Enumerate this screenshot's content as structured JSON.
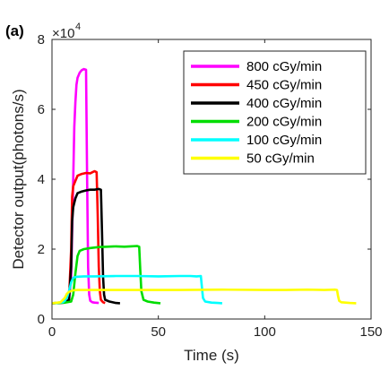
{
  "chart_data": {
    "type": "line",
    "panel_label": "(a)",
    "title": "",
    "xlabel": "Time (s)",
    "ylabel": "Detector output(photons/s)",
    "xlim": [
      0,
      150
    ],
    "ylim": [
      0,
      80000
    ],
    "x_ticks": [
      0,
      50,
      100,
      150
    ],
    "y_ticks": [
      0,
      20000,
      40000,
      60000,
      80000
    ],
    "x_tick_labels": [
      "0",
      "50",
      "100",
      "150"
    ],
    "y_tick_labels": [
      "0",
      "2",
      "4",
      "6",
      "8"
    ],
    "y_multiplier": {
      "base": "×10",
      "exponent": "4"
    },
    "grid": false,
    "legend": {
      "position": "top-right"
    },
    "series": [
      {
        "name": "800 cGy/min",
        "color": "#ff00ff",
        "x": [
          0,
          5,
          8,
          9,
          10,
          10.5,
          11,
          11.5,
          12,
          13,
          14,
          15,
          16,
          16.5,
          17,
          17.5,
          18,
          19,
          20,
          22
        ],
        "y": [
          4500,
          4800,
          5500,
          12000,
          40000,
          55000,
          62000,
          67000,
          69000,
          70500,
          71200,
          71500,
          71300,
          40000,
          15000,
          7000,
          5200,
          4800,
          4700,
          4600
        ]
      },
      {
        "name": "450 cGy/min",
        "color": "#ff0000",
        "x": [
          0,
          6,
          8,
          9,
          9.5,
          10,
          11,
          12,
          14,
          16,
          18,
          19,
          20,
          21,
          21.5,
          22,
          22.5,
          23,
          24,
          25
        ],
        "y": [
          4500,
          4700,
          5500,
          20000,
          35000,
          38000,
          39500,
          41000,
          41500,
          41800,
          41700,
          42000,
          42300,
          42000,
          30000,
          15000,
          8000,
          5500,
          4800,
          4600
        ]
      },
      {
        "name": "400 cGy/min",
        "color": "#000000",
        "x": [
          0,
          6,
          8,
          9,
          9.5,
          10,
          11,
          12,
          14,
          16,
          18,
          20,
          22,
          23,
          23.5,
          24,
          24.5,
          25,
          27,
          30,
          32
        ],
        "y": [
          4500,
          4700,
          5500,
          15000,
          28000,
          32000,
          34500,
          36000,
          36500,
          36800,
          37000,
          37000,
          37200,
          37000,
          25000,
          12000,
          7000,
          5500,
          5000,
          4600,
          4500
        ]
      },
      {
        "name": "200 cGy/min",
        "color": "#00dd00",
        "x": [
          0,
          6,
          9,
          10,
          11,
          12,
          13,
          15,
          18,
          22,
          26,
          30,
          34,
          37,
          40,
          41,
          41.5,
          42,
          43,
          45,
          48,
          51
        ],
        "y": [
          4500,
          4700,
          5000,
          7000,
          13000,
          18000,
          19500,
          20000,
          20300,
          20600,
          20700,
          20800,
          20700,
          20800,
          20900,
          20700,
          14000,
          8000,
          5500,
          5000,
          4700,
          4500
        ]
      },
      {
        "name": "100 cGy/min",
        "color": "#00ffff",
        "x": [
          0,
          5,
          6,
          7,
          8,
          9,
          10,
          11,
          12,
          15,
          20,
          30,
          40,
          50,
          60,
          65,
          68,
          70,
          70.5,
          71,
          72,
          75,
          78,
          80
        ],
        "y": [
          4500,
          4800,
          5200,
          6000,
          8000,
          10500,
          11800,
          12000,
          12100,
          12200,
          12200,
          12300,
          12300,
          12200,
          12300,
          12300,
          12200,
          12300,
          9000,
          6000,
          5000,
          4700,
          4600,
          4500
        ]
      },
      {
        "name": "50 cGy/min",
        "color": "#ffff00",
        "x": [
          0,
          4,
          6,
          7,
          8,
          9,
          10,
          12,
          20,
          40,
          60,
          80,
          100,
          110,
          120,
          128,
          133,
          134,
          134.5,
          135,
          136,
          140,
          143
        ],
        "y": [
          4500,
          4800,
          6000,
          7200,
          7800,
          8000,
          8200,
          8300,
          8300,
          8300,
          8300,
          8400,
          8300,
          8300,
          8400,
          8300,
          8400,
          8300,
          6500,
          5200,
          4800,
          4600,
          4500
        ]
      }
    ]
  }
}
